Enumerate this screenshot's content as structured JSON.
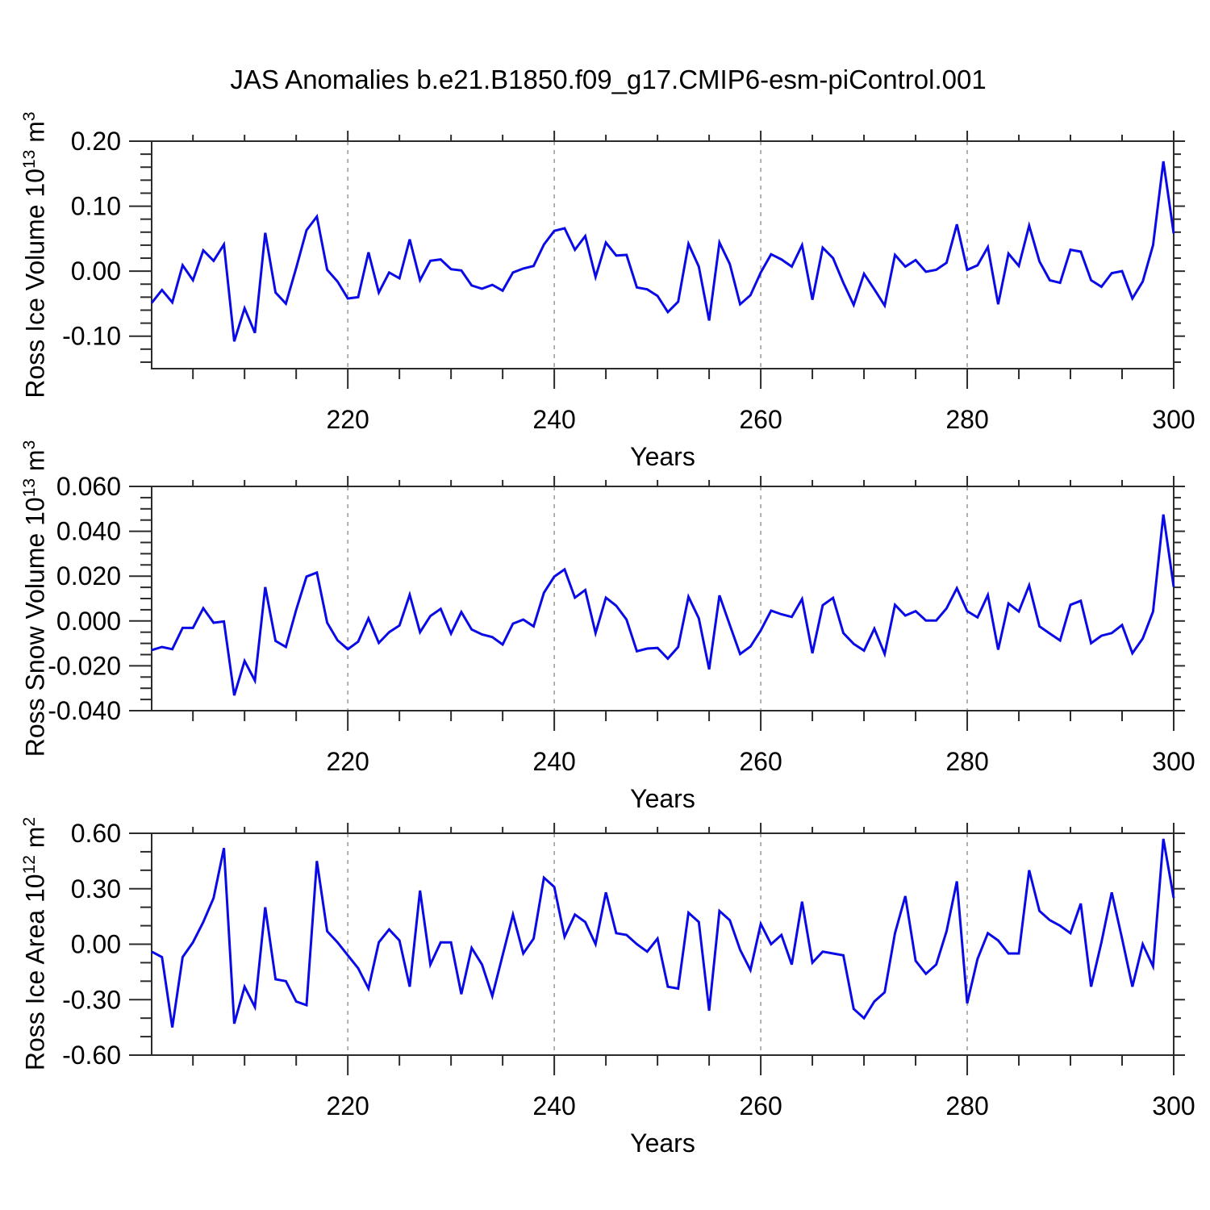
{
  "title": "JAS Anomalies b.e21.B1850.f09_g17.CMIP6-esm-piControl.001",
  "colors": {
    "background": "#ffffff",
    "text": "#000000",
    "axis": "#2b2b2b",
    "grid": "#999999",
    "line": "#0a0ae6"
  },
  "chart_data": [
    {
      "type": "line",
      "panel": "top",
      "ylabel_text": "Ross Ice Volume 10^13 m^3",
      "ylabel": {
        "prefix": "Ross Ice Volume 10",
        "exp": "13",
        "unit": " m",
        "unit_exp": "3"
      },
      "xlabel": "Years",
      "xlim": [
        201,
        300
      ],
      "ylim": [
        -0.15,
        0.2
      ],
      "xtick_values": [
        220,
        240,
        260,
        280,
        300
      ],
      "xtick_labels": [
        "220",
        "240",
        "260",
        "280",
        "300"
      ],
      "xtick_minor_step": 5,
      "gridlines_x": [
        220,
        240,
        260,
        280
      ],
      "ytick_values": [
        0.2,
        0.1,
        0.0,
        -0.1
      ],
      "ytick_labels": [
        "0.20",
        "0.10",
        "0.00",
        "-0.10"
      ],
      "ytick_major": 0.1,
      "ytick_minor": 0.02,
      "line_color": "#0a0ae6",
      "x_start": 201,
      "values": [
        -0.049,
        -0.029,
        -0.048,
        0.009,
        -0.014,
        0.032,
        0.016,
        0.041,
        -0.108,
        -0.057,
        -0.095,
        0.059,
        -0.033,
        -0.05,
        0.005,
        0.063,
        0.084,
        0.002,
        -0.016,
        -0.042,
        -0.04,
        0.029,
        -0.033,
        -0.002,
        -0.011,
        0.049,
        -0.014,
        0.016,
        0.018,
        0.003,
        0.001,
        -0.022,
        -0.027,
        -0.021,
        -0.03,
        -0.002,
        0.004,
        0.008,
        0.041,
        0.062,
        0.066,
        0.033,
        0.054,
        -0.009,
        0.044,
        0.024,
        0.025,
        -0.025,
        -0.028,
        -0.038,
        -0.063,
        -0.047,
        0.042,
        0.007,
        -0.076,
        0.044,
        0.011,
        -0.051,
        -0.037,
        -0.002,
        0.026,
        0.018,
        0.007,
        0.04,
        -0.044,
        0.036,
        0.02,
        -0.018,
        -0.052,
        -0.004,
        -0.028,
        -0.053,
        0.025,
        0.007,
        0.017,
        -0.001,
        0.002,
        0.013,
        0.072,
        0.002,
        0.009,
        0.037,
        -0.051,
        0.027,
        0.008,
        0.07,
        0.015,
        -0.014,
        -0.018,
        0.033,
        0.03,
        -0.014,
        -0.024,
        -0.003,
        0.0,
        -0.042,
        -0.016,
        0.04,
        0.169,
        0.058
      ]
    },
    {
      "type": "line",
      "panel": "middle",
      "ylabel_text": "Ross Snow Volume 10^13 m^3",
      "ylabel": {
        "prefix": "Ross Snow Volume 10",
        "exp": "13",
        "unit": " m",
        "unit_exp": "3"
      },
      "xlabel": "Years",
      "xlim": [
        201,
        300
      ],
      "ylim": [
        -0.04,
        0.06
      ],
      "xtick_values": [
        220,
        240,
        260,
        280,
        300
      ],
      "xtick_labels": [
        "220",
        "240",
        "260",
        "280",
        "300"
      ],
      "xtick_minor_step": 5,
      "gridlines_x": [
        220,
        240,
        260,
        280
      ],
      "ytick_values": [
        0.06,
        0.04,
        0.02,
        0.0,
        -0.02,
        -0.04
      ],
      "ytick_labels": [
        "0.060",
        "0.040",
        "0.020",
        "0.000",
        "-0.020",
        "-0.040"
      ],
      "ytick_major": 0.02,
      "ytick_minor": 0.005,
      "line_color": "#0a0ae6",
      "x_start": 201,
      "values": [
        -0.013,
        -0.0116,
        -0.0126,
        -0.0031,
        -0.0031,
        0.0057,
        -0.0008,
        -0.0002,
        -0.0332,
        -0.0178,
        -0.0266,
        0.0151,
        -0.0089,
        -0.0116,
        0.005,
        0.0198,
        0.0216,
        -0.0008,
        -0.0086,
        -0.0126,
        -0.0092,
        0.0012,
        -0.0098,
        -0.005,
        -0.002,
        0.0117,
        -0.005,
        0.0022,
        0.0054,
        -0.0056,
        0.004,
        -0.0038,
        -0.006,
        -0.0072,
        -0.0105,
        -0.0012,
        0.0006,
        -0.0024,
        0.0126,
        0.0198,
        0.023,
        0.0104,
        0.0138,
        -0.0054,
        0.0104,
        0.0068,
        0.0006,
        -0.0135,
        -0.0123,
        -0.012,
        -0.0168,
        -0.0116,
        0.0108,
        0.0012,
        -0.0216,
        0.0114,
        -0.0018,
        -0.0147,
        -0.0114,
        -0.0042,
        0.0046,
        0.003,
        0.0018,
        0.0098,
        -0.0144,
        0.007,
        0.0103,
        -0.0054,
        -0.0102,
        -0.0132,
        -0.0034,
        -0.0147,
        0.0072,
        0.0024,
        0.0044,
        0.0002,
        0.0002,
        0.0056,
        0.0146,
        0.0044,
        0.0016,
        0.0116,
        -0.0128,
        0.0078,
        0.0042,
        0.0159,
        -0.0024,
        -0.0056,
        -0.0087,
        0.0072,
        0.009,
        -0.0099,
        -0.0066,
        -0.0054,
        -0.0018,
        -0.0144,
        -0.0078,
        0.0042,
        0.0475,
        0.0152
      ]
    },
    {
      "type": "line",
      "panel": "bottom",
      "ylabel_text": "Ross Ice Area 10^12 m^2",
      "ylabel": {
        "prefix": "Ross Ice Area 10",
        "exp": "12",
        "unit": " m",
        "unit_exp": "2"
      },
      "xlabel": "Years",
      "xlim": [
        201,
        300
      ],
      "ylim": [
        -0.6,
        0.6
      ],
      "xtick_values": [
        220,
        240,
        260,
        280,
        300
      ],
      "xtick_labels": [
        "220",
        "240",
        "260",
        "280",
        "300"
      ],
      "xtick_minor_step": 5,
      "gridlines_x": [
        220,
        240,
        260,
        280
      ],
      "ytick_values": [
        0.6,
        0.3,
        0.0,
        -0.3,
        -0.6
      ],
      "ytick_labels": [
        "0.60",
        "0.30",
        "0.00",
        "-0.30",
        "-0.60"
      ],
      "ytick_major": 0.3,
      "ytick_minor": 0.1,
      "line_color": "#0a0ae6",
      "x_start": 201,
      "values": [
        -0.04,
        -0.07,
        -0.45,
        -0.07,
        0.01,
        0.12,
        0.25,
        0.52,
        -0.43,
        -0.23,
        -0.34,
        0.2,
        -0.19,
        -0.2,
        -0.31,
        -0.33,
        0.45,
        0.07,
        0.01,
        -0.06,
        -0.13,
        -0.24,
        0.01,
        0.08,
        0.02,
        -0.23,
        0.29,
        -0.11,
        0.01,
        0.01,
        -0.27,
        -0.02,
        -0.11,
        -0.28,
        -0.06,
        0.16,
        -0.05,
        0.03,
        0.36,
        0.31,
        0.04,
        0.16,
        0.12,
        0.0,
        0.28,
        0.06,
        0.05,
        0.0,
        -0.04,
        0.03,
        -0.23,
        -0.24,
        0.17,
        0.12,
        -0.36,
        0.18,
        0.13,
        -0.03,
        -0.14,
        0.11,
        0.0,
        0.05,
        -0.11,
        0.23,
        -0.1,
        -0.04,
        -0.05,
        -0.06,
        -0.35,
        -0.4,
        -0.31,
        -0.26,
        0.06,
        0.26,
        -0.09,
        -0.16,
        -0.11,
        0.07,
        0.34,
        -0.32,
        -0.08,
        0.06,
        0.02,
        -0.05,
        -0.05,
        0.4,
        0.18,
        0.13,
        0.1,
        0.06,
        0.22,
        -0.23,
        0.01,
        0.28,
        0.03,
        -0.23,
        0.0,
        -0.12,
        0.57,
        0.25
      ]
    }
  ]
}
